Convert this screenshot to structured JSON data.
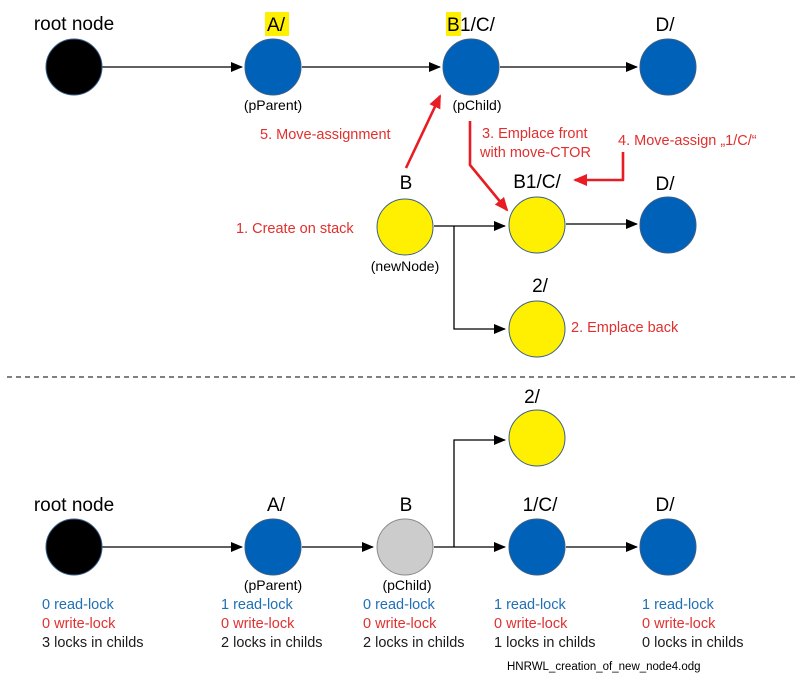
{
  "colors": {
    "root": "#000000",
    "blue": "#0061b8",
    "yellow": "#ffef00",
    "gray": "#cccccc",
    "highlight": "#ffef00",
    "red_arrow": "#e81c23",
    "step_text": "#e0302f",
    "read_text": "#1f6fb5",
    "write_text": "#e0302f"
  },
  "top": {
    "root_label": "root node",
    "a_label": "A/",
    "b_label_first": "B",
    "b_label_rest": "1/C/",
    "d_label": "D/",
    "pparent": "(pParent)",
    "pchild": "(pChild)",
    "b_node_label": "B",
    "newnode": "(newNode)",
    "b1c_label": "B1/C/",
    "d2_label": "D/",
    "two_label": "2/",
    "step1": "1. Create on stack",
    "step2": "2. Emplace back",
    "step3_line1": "3. Emplace front",
    "step3_line2": "with move-CTOR",
    "step4": "4. Move-assign „1/C/“",
    "step5": "5. Move-assignment"
  },
  "bottom": {
    "two_label": "2/",
    "root_label": "root node",
    "a_label": "A/",
    "b_label": "B",
    "onec_label": "1/C/",
    "d_label": "D/",
    "pparent": "(pParent)",
    "pchild": "(pChild)",
    "stats": [
      {
        "read": "0 read-lock",
        "write": "0 write-lock",
        "locks": "3 locks in childs"
      },
      {
        "read": "1 read-lock",
        "write": "0 write-lock",
        "locks": "2 locks in childs"
      },
      {
        "read": "0 read-lock",
        "write": "0 write-lock",
        "locks": "2 locks in childs"
      },
      {
        "read": "1 read-lock",
        "write": "0 write-lock",
        "locks": "1 locks in childs"
      },
      {
        "read": "1 read-lock",
        "write": "0 write-lock",
        "locks": "0 locks in childs"
      }
    ]
  },
  "filename": "HNRWL_creation_of_new_node4.odg"
}
